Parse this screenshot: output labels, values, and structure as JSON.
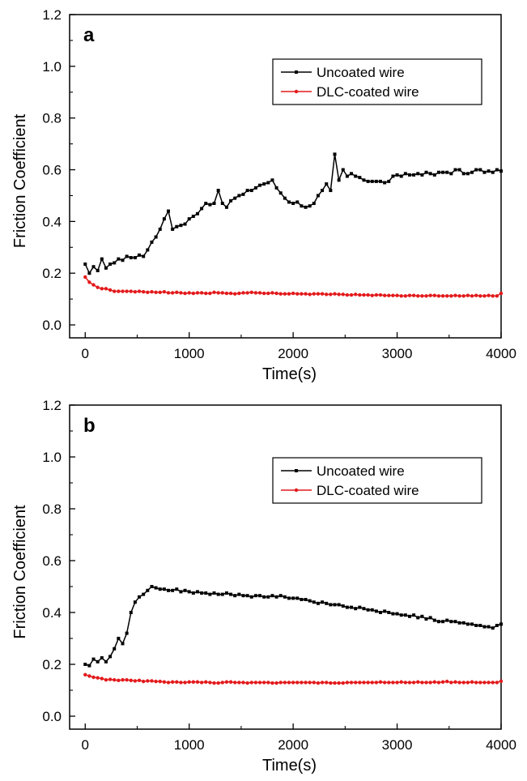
{
  "chart_data": [
    {
      "type": "line",
      "panel_label": "a",
      "xlabel": "Time(s)",
      "ylabel": "Friction Coefficient",
      "xlim": [
        -150,
        4000
      ],
      "ylim": [
        -0.05,
        1.2
      ],
      "xticks": [
        0,
        1000,
        2000,
        3000,
        4000
      ],
      "yticks": [
        0.0,
        0.2,
        0.4,
        0.6,
        0.8,
        1.0,
        1.2
      ],
      "xtick_labels": [
        "0",
        "1000",
        "2000",
        "3000",
        "4000"
      ],
      "ytick_labels": [
        "0.0",
        "0.2",
        "0.4",
        "0.6",
        "0.8",
        "1.0",
        "1.2"
      ],
      "grid": false,
      "legend": "top-right",
      "series": [
        {
          "name": "Uncoated wire",
          "color": "#000000",
          "marker": "square",
          "x": [
            0,
            40,
            80,
            120,
            160,
            200,
            240,
            280,
            320,
            360,
            400,
            440,
            480,
            520,
            560,
            600,
            640,
            680,
            720,
            760,
            800,
            840,
            880,
            920,
            960,
            1000,
            1040,
            1080,
            1120,
            1160,
            1200,
            1240,
            1280,
            1320,
            1360,
            1400,
            1440,
            1480,
            1520,
            1560,
            1600,
            1640,
            1680,
            1720,
            1760,
            1800,
            1840,
            1880,
            1920,
            1960,
            2000,
            2040,
            2080,
            2120,
            2160,
            2200,
            2240,
            2280,
            2320,
            2360,
            2400,
            2440,
            2480,
            2520,
            2560,
            2600,
            2640,
            2680,
            2720,
            2760,
            2800,
            2840,
            2880,
            2920,
            2960,
            3000,
            3040,
            3080,
            3120,
            3160,
            3200,
            3240,
            3280,
            3320,
            3360,
            3400,
            3440,
            3480,
            3520,
            3560,
            3600,
            3640,
            3680,
            3720,
            3760,
            3800,
            3840,
            3880,
            3920,
            3960,
            4000
          ],
          "y": [
            0.235,
            0.2,
            0.225,
            0.21,
            0.255,
            0.22,
            0.235,
            0.24,
            0.255,
            0.25,
            0.265,
            0.26,
            0.26,
            0.27,
            0.265,
            0.29,
            0.32,
            0.34,
            0.37,
            0.41,
            0.44,
            0.37,
            0.38,
            0.385,
            0.39,
            0.41,
            0.42,
            0.43,
            0.45,
            0.47,
            0.465,
            0.47,
            0.52,
            0.47,
            0.455,
            0.48,
            0.49,
            0.5,
            0.505,
            0.52,
            0.52,
            0.53,
            0.54,
            0.545,
            0.55,
            0.56,
            0.53,
            0.51,
            0.49,
            0.475,
            0.47,
            0.475,
            0.46,
            0.455,
            0.46,
            0.47,
            0.5,
            0.52,
            0.545,
            0.52,
            0.66,
            0.56,
            0.6,
            0.575,
            0.585,
            0.575,
            0.57,
            0.56,
            0.555,
            0.555,
            0.555,
            0.555,
            0.55,
            0.555,
            0.575,
            0.58,
            0.575,
            0.585,
            0.58,
            0.58,
            0.585,
            0.58,
            0.59,
            0.585,
            0.58,
            0.59,
            0.59,
            0.59,
            0.585,
            0.6,
            0.6,
            0.585,
            0.585,
            0.59,
            0.6,
            0.6,
            0.59,
            0.595,
            0.59,
            0.6,
            0.595
          ]
        },
        {
          "name": "DLC-coated wire",
          "color": "#e31a1c",
          "marker": "circle",
          "x": [
            0,
            40,
            80,
            120,
            160,
            200,
            240,
            280,
            320,
            360,
            400,
            440,
            480,
            520,
            560,
            600,
            640,
            680,
            720,
            760,
            800,
            840,
            880,
            920,
            960,
            1000,
            1040,
            1080,
            1120,
            1160,
            1200,
            1240,
            1280,
            1320,
            1360,
            1400,
            1440,
            1480,
            1520,
            1560,
            1600,
            1640,
            1680,
            1720,
            1760,
            1800,
            1840,
            1880,
            1920,
            1960,
            2000,
            2040,
            2080,
            2120,
            2160,
            2200,
            2240,
            2280,
            2320,
            2360,
            2400,
            2440,
            2480,
            2520,
            2560,
            2600,
            2640,
            2680,
            2720,
            2760,
            2800,
            2840,
            2880,
            2920,
            2960,
            3000,
            3040,
            3080,
            3120,
            3160,
            3200,
            3240,
            3280,
            3320,
            3360,
            3400,
            3440,
            3480,
            3520,
            3560,
            3600,
            3640,
            3680,
            3720,
            3760,
            3800,
            3840,
            3880,
            3920,
            3960,
            4000
          ],
          "y": [
            0.185,
            0.165,
            0.155,
            0.145,
            0.14,
            0.14,
            0.135,
            0.13,
            0.13,
            0.13,
            0.13,
            0.13,
            0.128,
            0.13,
            0.128,
            0.126,
            0.128,
            0.126,
            0.126,
            0.128,
            0.124,
            0.124,
            0.126,
            0.124,
            0.122,
            0.124,
            0.122,
            0.124,
            0.124,
            0.122,
            0.122,
            0.126,
            0.124,
            0.124,
            0.122,
            0.122,
            0.12,
            0.122,
            0.124,
            0.124,
            0.126,
            0.124,
            0.124,
            0.122,
            0.122,
            0.124,
            0.122,
            0.12,
            0.12,
            0.12,
            0.122,
            0.12,
            0.12,
            0.12,
            0.118,
            0.12,
            0.12,
            0.12,
            0.118,
            0.118,
            0.12,
            0.118,
            0.118,
            0.116,
            0.116,
            0.118,
            0.116,
            0.116,
            0.116,
            0.114,
            0.116,
            0.116,
            0.114,
            0.114,
            0.114,
            0.114,
            0.112,
            0.112,
            0.114,
            0.114,
            0.112,
            0.112,
            0.112,
            0.114,
            0.114,
            0.112,
            0.112,
            0.112,
            0.112,
            0.114,
            0.112,
            0.112,
            0.114,
            0.112,
            0.114,
            0.112,
            0.112,
            0.114,
            0.112,
            0.112,
            0.122
          ]
        }
      ]
    },
    {
      "type": "line",
      "panel_label": "b",
      "xlabel": "Time(s)",
      "ylabel": "Friction Coefficient",
      "xlim": [
        -150,
        4000
      ],
      "ylim": [
        -0.05,
        1.2
      ],
      "xticks": [
        0,
        1000,
        2000,
        3000,
        4000
      ],
      "yticks": [
        0.0,
        0.2,
        0.4,
        0.6,
        0.8,
        1.0,
        1.2
      ],
      "xtick_labels": [
        "0",
        "1000",
        "2000",
        "3000",
        "4000"
      ],
      "ytick_labels": [
        "0.0",
        "0.2",
        "0.4",
        "0.6",
        "0.8",
        "1.0",
        "1.2"
      ],
      "grid": false,
      "legend": "top-right",
      "series": [
        {
          "name": "Uncoated wire",
          "color": "#000000",
          "marker": "square",
          "x": [
            0,
            40,
            80,
            120,
            160,
            200,
            240,
            280,
            320,
            360,
            400,
            440,
            480,
            520,
            560,
            600,
            640,
            680,
            720,
            760,
            800,
            840,
            880,
            920,
            960,
            1000,
            1040,
            1080,
            1120,
            1160,
            1200,
            1240,
            1280,
            1320,
            1360,
            1400,
            1440,
            1480,
            1520,
            1560,
            1600,
            1640,
            1680,
            1720,
            1760,
            1800,
            1840,
            1880,
            1920,
            1960,
            2000,
            2040,
            2080,
            2120,
            2160,
            2200,
            2240,
            2280,
            2320,
            2360,
            2400,
            2440,
            2480,
            2520,
            2560,
            2600,
            2640,
            2680,
            2720,
            2760,
            2800,
            2840,
            2880,
            2920,
            2960,
            3000,
            3040,
            3080,
            3120,
            3160,
            3200,
            3240,
            3280,
            3320,
            3360,
            3400,
            3440,
            3480,
            3520,
            3560,
            3600,
            3640,
            3680,
            3720,
            3760,
            3800,
            3840,
            3880,
            3920,
            3960,
            4000
          ],
          "y": [
            0.2,
            0.195,
            0.22,
            0.21,
            0.225,
            0.21,
            0.23,
            0.26,
            0.3,
            0.28,
            0.32,
            0.4,
            0.44,
            0.46,
            0.47,
            0.485,
            0.5,
            0.495,
            0.49,
            0.49,
            0.485,
            0.485,
            0.49,
            0.48,
            0.485,
            0.48,
            0.475,
            0.48,
            0.475,
            0.475,
            0.47,
            0.475,
            0.47,
            0.47,
            0.475,
            0.47,
            0.465,
            0.47,
            0.465,
            0.465,
            0.46,
            0.465,
            0.465,
            0.46,
            0.46,
            0.465,
            0.46,
            0.465,
            0.46,
            0.455,
            0.455,
            0.455,
            0.45,
            0.45,
            0.445,
            0.44,
            0.435,
            0.44,
            0.435,
            0.43,
            0.43,
            0.43,
            0.425,
            0.42,
            0.42,
            0.415,
            0.42,
            0.415,
            0.41,
            0.41,
            0.405,
            0.4,
            0.405,
            0.4,
            0.395,
            0.395,
            0.39,
            0.39,
            0.385,
            0.39,
            0.38,
            0.385,
            0.375,
            0.38,
            0.37,
            0.365,
            0.365,
            0.37,
            0.365,
            0.365,
            0.36,
            0.36,
            0.355,
            0.355,
            0.35,
            0.35,
            0.345,
            0.345,
            0.34,
            0.35,
            0.355
          ]
        },
        {
          "name": "DLC-coated wire",
          "color": "#e31a1c",
          "marker": "circle",
          "x": [
            0,
            40,
            80,
            120,
            160,
            200,
            240,
            280,
            320,
            360,
            400,
            440,
            480,
            520,
            560,
            600,
            640,
            680,
            720,
            760,
            800,
            840,
            880,
            920,
            960,
            1000,
            1040,
            1080,
            1120,
            1160,
            1200,
            1240,
            1280,
            1320,
            1360,
            1400,
            1440,
            1480,
            1520,
            1560,
            1600,
            1640,
            1680,
            1720,
            1760,
            1800,
            1840,
            1880,
            1920,
            1960,
            2000,
            2040,
            2080,
            2120,
            2160,
            2200,
            2240,
            2280,
            2320,
            2360,
            2400,
            2440,
            2480,
            2520,
            2560,
            2600,
            2640,
            2680,
            2720,
            2760,
            2800,
            2840,
            2880,
            2920,
            2960,
            3000,
            3040,
            3080,
            3120,
            3160,
            3200,
            3240,
            3280,
            3320,
            3360,
            3400,
            3440,
            3480,
            3520,
            3560,
            3600,
            3640,
            3680,
            3720,
            3760,
            3800,
            3840,
            3880,
            3920,
            3960,
            4000
          ],
          "y": [
            0.16,
            0.155,
            0.15,
            0.148,
            0.145,
            0.14,
            0.142,
            0.14,
            0.138,
            0.14,
            0.14,
            0.138,
            0.136,
            0.138,
            0.134,
            0.136,
            0.136,
            0.134,
            0.134,
            0.132,
            0.13,
            0.132,
            0.132,
            0.13,
            0.13,
            0.132,
            0.132,
            0.132,
            0.13,
            0.132,
            0.13,
            0.128,
            0.128,
            0.13,
            0.132,
            0.132,
            0.13,
            0.13,
            0.13,
            0.128,
            0.13,
            0.13,
            0.13,
            0.13,
            0.13,
            0.128,
            0.128,
            0.13,
            0.13,
            0.13,
            0.13,
            0.13,
            0.13,
            0.13,
            0.13,
            0.13,
            0.128,
            0.13,
            0.13,
            0.128,
            0.128,
            0.128,
            0.128,
            0.13,
            0.13,
            0.13,
            0.13,
            0.13,
            0.13,
            0.13,
            0.13,
            0.132,
            0.13,
            0.13,
            0.13,
            0.13,
            0.132,
            0.13,
            0.13,
            0.13,
            0.132,
            0.13,
            0.13,
            0.13,
            0.132,
            0.13,
            0.132,
            0.134,
            0.13,
            0.132,
            0.13,
            0.13,
            0.13,
            0.132,
            0.13,
            0.13,
            0.13,
            0.13,
            0.13,
            0.13,
            0.135
          ]
        }
      ]
    }
  ]
}
